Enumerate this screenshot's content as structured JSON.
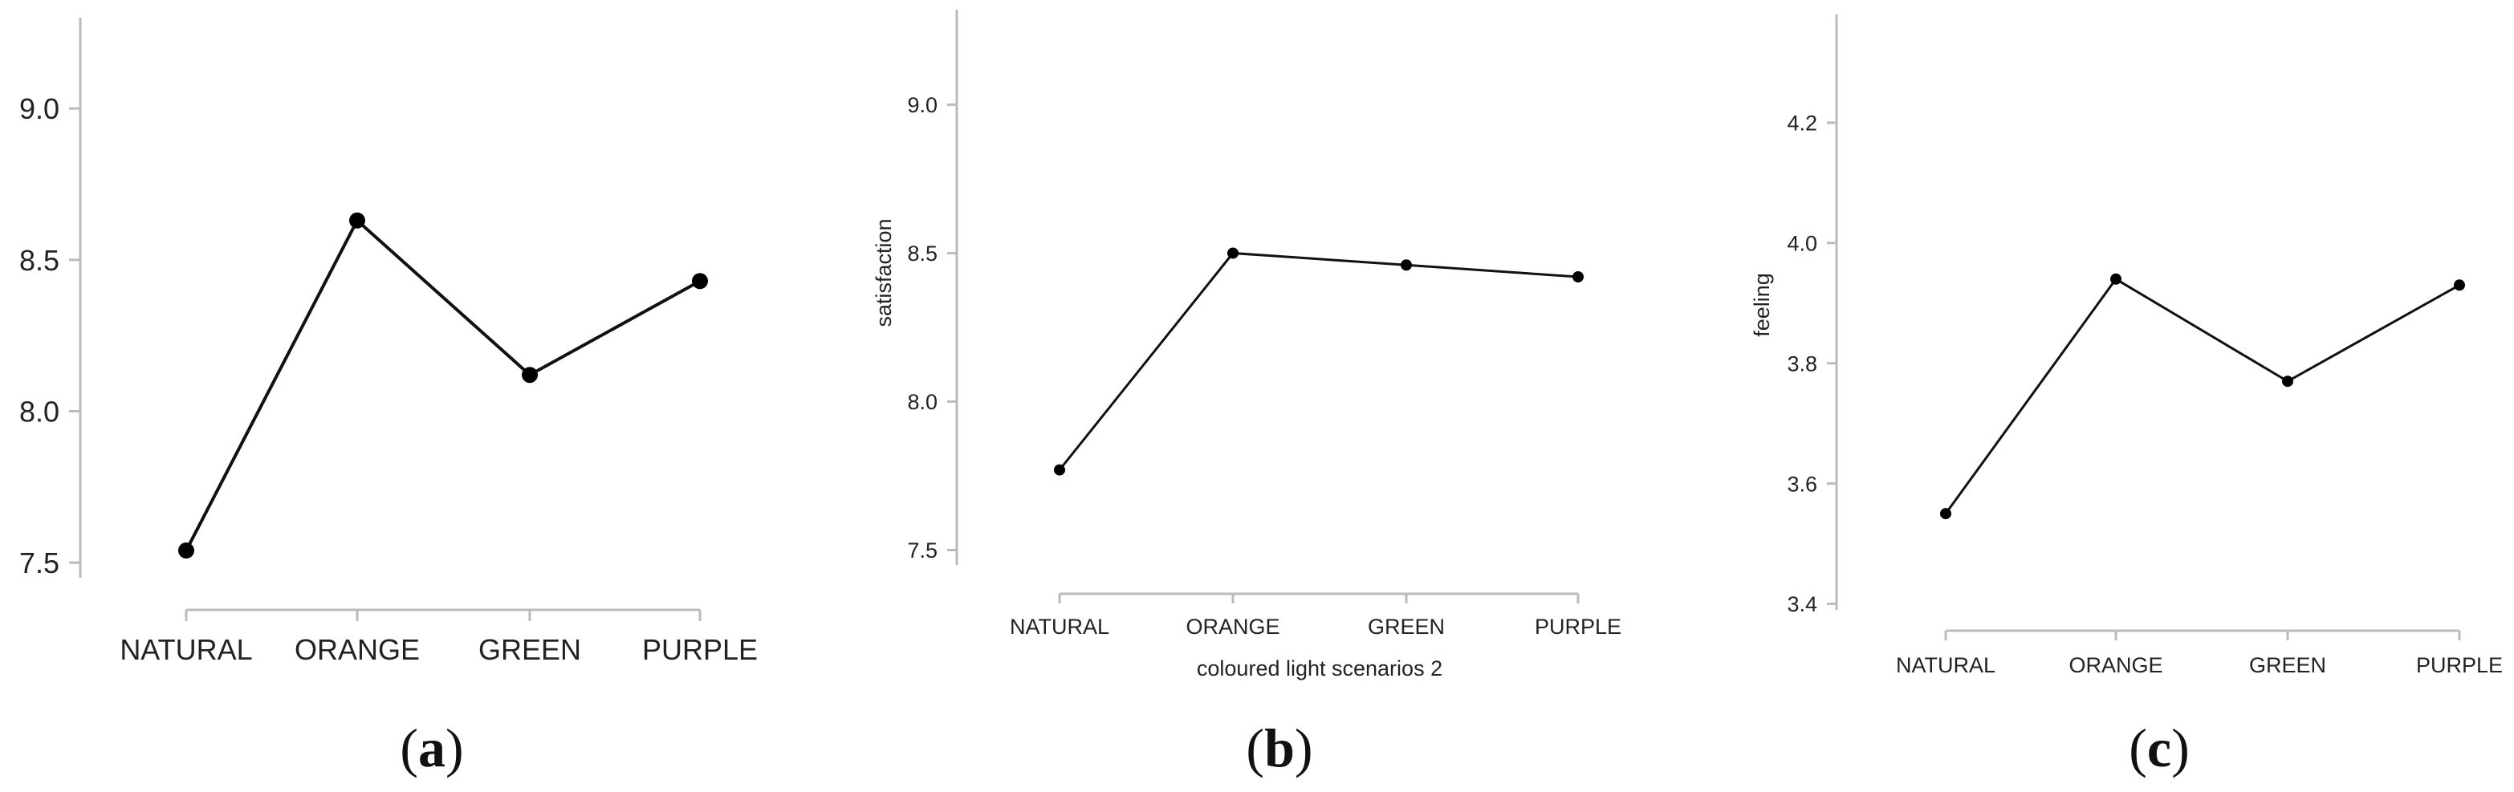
{
  "chart_data": [
    {
      "type": "line",
      "panel": "a",
      "caption_open": "(",
      "caption_letter": "a",
      "caption_close": ")",
      "categories": [
        "NATURAL",
        "ORANGE",
        "GREEN",
        "PURPLE"
      ],
      "values": [
        7.54,
        8.63,
        8.12,
        8.43
      ],
      "title": "",
      "xlabel": "",
      "ylabel": "",
      "yticks": [
        "7.5",
        "8.0",
        "8.5",
        "9.0"
      ],
      "ylim": [
        7.45,
        9.3
      ],
      "grid": false
    },
    {
      "type": "line",
      "panel": "b",
      "caption_open": "(",
      "caption_letter": "b",
      "caption_close": ")",
      "categories": [
        "NATURAL",
        "ORANGE",
        "GREEN",
        "PURPLE"
      ],
      "values": [
        7.77,
        8.5,
        8.46,
        8.42
      ],
      "title": "",
      "xlabel": "coloured light scenarios 2",
      "ylabel": "satisfaction",
      "yticks": [
        "7.5",
        "8.0",
        "8.5",
        "9.0"
      ],
      "ylim": [
        7.45,
        9.32
      ],
      "grid": false
    },
    {
      "type": "line",
      "panel": "c",
      "caption_open": "(",
      "caption_letter": "c",
      "caption_close": ")",
      "categories": [
        "NATURAL",
        "ORANGE",
        "GREEN",
        "PURPLE"
      ],
      "values": [
        3.55,
        3.94,
        3.77,
        3.93
      ],
      "title": "",
      "xlabel": "",
      "ylabel": "feeling",
      "yticks": [
        "3.4",
        "3.6",
        "3.8",
        "4.0",
        "4.2"
      ],
      "ylim": [
        3.39,
        4.38
      ],
      "grid": false
    }
  ]
}
